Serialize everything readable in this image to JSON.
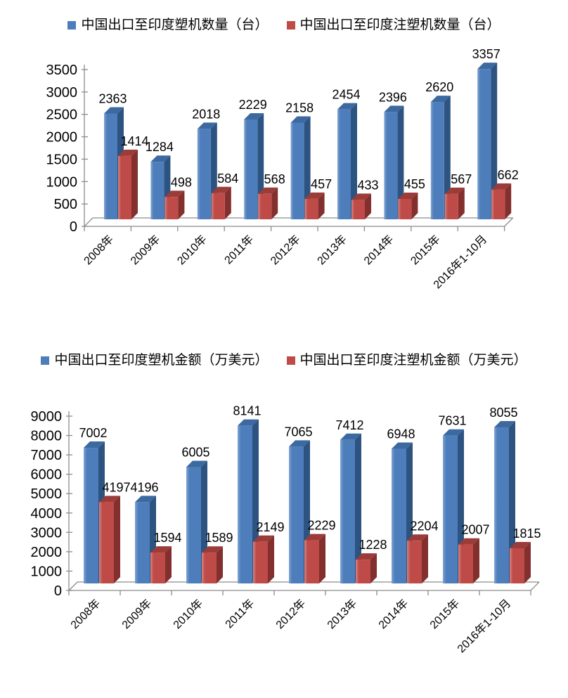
{
  "page": {
    "background": "#ffffff",
    "axis_line_color": "#8c8c8c",
    "text_color": "#000000"
  },
  "chart_data": [
    {
      "type": "bar",
      "style": "3d-clustered-column",
      "title": "",
      "legend_position": "top",
      "grid": false,
      "data_labels": true,
      "xtick_rotation": 45,
      "categories": [
        "2008年",
        "2009年",
        "2010年",
        "2011年",
        "2012年",
        "2013年",
        "2014年",
        "2015年",
        "2016年1-10月"
      ],
      "series": [
        {
          "name": "中国出口至印度塑机数量（台）",
          "values": [
            2363,
            1284,
            2018,
            2229,
            2158,
            2454,
            2396,
            2620,
            3357
          ],
          "colors": {
            "face": "#4d7ebb",
            "highlight": "#82a4d3",
            "side": "#2d5380",
            "top": "#3c69a0"
          }
        },
        {
          "name": "中国出口至印度注塑机数量（台）",
          "values": [
            1414,
            498,
            584,
            568,
            457,
            433,
            455,
            567,
            662
          ],
          "colors": {
            "face": "#be4b48",
            "highlight": "#d68683",
            "side": "#822f2d",
            "top": "#9c3c39"
          }
        }
      ],
      "ylim": [
        0,
        3500
      ],
      "ytick_step": 500,
      "ytick_labels": [
        "0",
        "500",
        "1000",
        "1500",
        "2000",
        "2500",
        "3000",
        "3500"
      ]
    },
    {
      "type": "bar",
      "style": "3d-clustered-column",
      "title": "",
      "legend_position": "top",
      "grid": false,
      "data_labels": true,
      "xtick_rotation": 45,
      "categories": [
        "2008年",
        "2009年",
        "2010年",
        "2011年",
        "2012年",
        "2013年",
        "2014年",
        "2015年",
        "2016年1-10月"
      ],
      "series": [
        {
          "name": "中国出口至印度塑机金额（万美元）",
          "values": [
            7002,
            4196,
            6005,
            8141,
            7065,
            7412,
            6948,
            7631,
            8055
          ],
          "colors": {
            "face": "#4d7ebb",
            "highlight": "#82a4d3",
            "side": "#2d5380",
            "top": "#3c69a0"
          }
        },
        {
          "name": "中国出口至印度注塑机金额（万美元）",
          "values": [
            4197,
            1594,
            1589,
            2149,
            2229,
            1228,
            2204,
            2007,
            1815
          ],
          "colors": {
            "face": "#be4b48",
            "highlight": "#d68683",
            "side": "#822f2d",
            "top": "#9c3c39"
          }
        }
      ],
      "ylim": [
        0,
        9000
      ],
      "ytick_step": 1000,
      "ytick_labels": [
        "0",
        "1000",
        "2000",
        "3000",
        "4000",
        "5000",
        "6000",
        "7000",
        "8000",
        "9000"
      ]
    }
  ]
}
